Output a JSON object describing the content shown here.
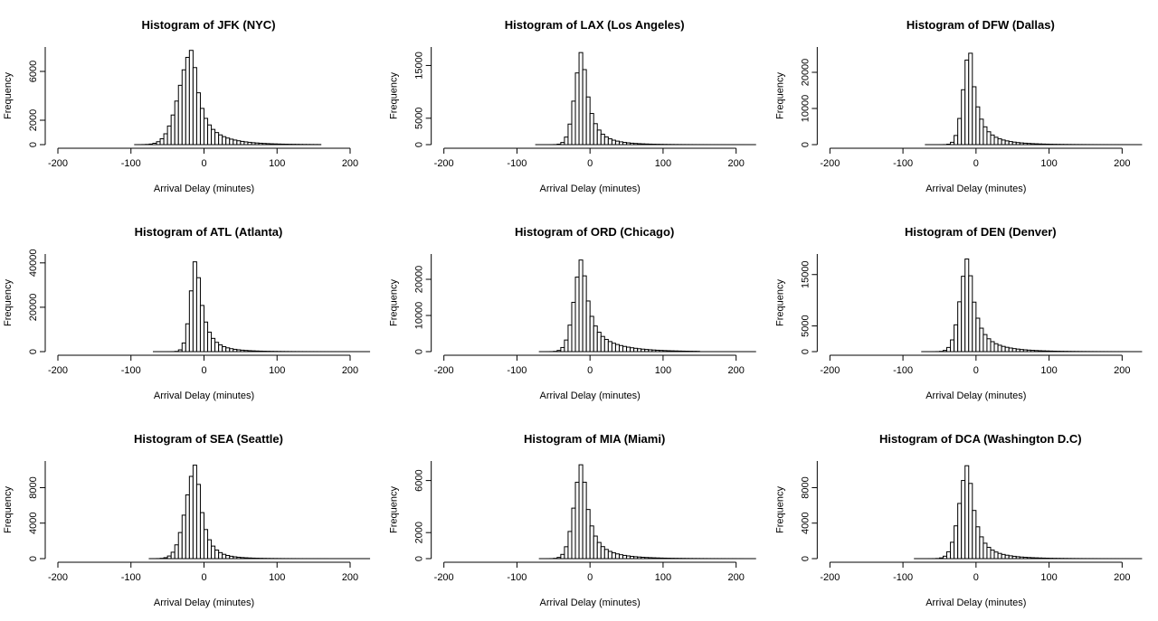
{
  "chart_data": [
    {
      "type": "bar",
      "title": "Histogram of JFK (NYC)",
      "xlabel": "Arrival Delay (minutes)",
      "ylabel": "Frequency",
      "xlim": [
        -200,
        210
      ],
      "ylim": [
        0,
        8000
      ],
      "xticks": [
        -200,
        -100,
        0,
        100,
        200
      ],
      "yticks": [
        0,
        2000,
        6000
      ],
      "bin_width": 5,
      "x_start": -95,
      "peak": 7800,
      "peak_x": -15,
      "left_width": 18,
      "tail_decay": 30,
      "tail_weight": 0.32,
      "tail_end": 160,
      "baseline": false
    },
    {
      "type": "bar",
      "title": "Histogram of LAX (Los Angeles)",
      "xlabel": "Arrival Delay (minutes)",
      "ylabel": "Frequency",
      "xlim": [
        -200,
        210
      ],
      "ylim": [
        0,
        18500
      ],
      "xticks": [
        -200,
        -100,
        0,
        100,
        200
      ],
      "yticks": [
        0,
        5000,
        15000
      ],
      "bin_width": 5,
      "x_start": -75,
      "peak": 18000,
      "peak_x": -10,
      "left_width": 10,
      "tail_decay": 25,
      "tail_weight": 0.22,
      "tail_end": 210,
      "baseline": true
    },
    {
      "type": "bar",
      "title": "Histogram of DFW (Dallas)",
      "xlabel": "Arrival Delay (minutes)",
      "ylabel": "Frequency",
      "xlim": [
        -200,
        210
      ],
      "ylim": [
        0,
        27000
      ],
      "xticks": [
        -200,
        -100,
        0,
        100,
        200
      ],
      "yticks": [
        0,
        10000,
        20000
      ],
      "bin_width": 5,
      "x_start": -70,
      "peak": 26500,
      "peak_x": -8,
      "left_width": 9,
      "tail_decay": 28,
      "tail_weight": 0.22,
      "tail_end": 210,
      "baseline": true
    },
    {
      "type": "bar",
      "title": "Histogram of ATL (Atlanta)",
      "xlabel": "Arrival Delay (minutes)",
      "ylabel": "Frequency",
      "xlim": [
        -200,
        210
      ],
      "ylim": [
        0,
        44000
      ],
      "xticks": [
        -200,
        -100,
        0,
        100,
        200
      ],
      "yticks": [
        0,
        20000,
        40000
      ],
      "bin_width": 5,
      "x_start": -70,
      "peak": 42500,
      "peak_x": -10,
      "left_width": 8,
      "tail_decay": 25,
      "tail_weight": 0.18,
      "tail_end": 210,
      "baseline": true
    },
    {
      "type": "bar",
      "title": "Histogram of ORD (Chicago)",
      "xlabel": "Arrival Delay (minutes)",
      "ylabel": "Frequency",
      "xlim": [
        -200,
        210
      ],
      "ylim": [
        0,
        27000
      ],
      "xticks": [
        -200,
        -100,
        0,
        100,
        200
      ],
      "yticks": [
        0,
        10000,
        20000
      ],
      "bin_width": 5,
      "x_start": -70,
      "peak": 26000,
      "peak_x": -10,
      "left_width": 11,
      "tail_decay": 35,
      "tail_weight": 0.28,
      "tail_end": 150,
      "baseline": true
    },
    {
      "type": "bar",
      "title": "Histogram of DEN (Denver)",
      "xlabel": "Arrival Delay (minutes)",
      "ylabel": "Frequency",
      "xlim": [
        -200,
        210
      ],
      "ylim": [
        0,
        19000
      ],
      "xticks": [
        -200,
        -100,
        0,
        100,
        200
      ],
      "yticks": [
        0,
        5000,
        15000
      ],
      "bin_width": 5,
      "x_start": -75,
      "peak": 18500,
      "peak_x": -10,
      "left_width": 11,
      "tail_decay": 30,
      "tail_weight": 0.25,
      "tail_end": 210,
      "baseline": true
    },
    {
      "type": "bar",
      "title": "Histogram of SEA (Seattle)",
      "xlabel": "Arrival Delay (minutes)",
      "ylabel": "Frequency",
      "xlim": [
        -200,
        210
      ],
      "ylim": [
        0,
        11000
      ],
      "xticks": [
        -200,
        -100,
        0,
        100,
        200
      ],
      "yticks": [
        0,
        4000,
        8000
      ],
      "bin_width": 5,
      "x_start": -75,
      "peak": 10700,
      "peak_x": -10,
      "left_width": 14,
      "tail_decay": 22,
      "tail_weight": 0.18,
      "tail_end": 210,
      "baseline": true
    },
    {
      "type": "bar",
      "title": "Histogram of MIA (Miami)",
      "xlabel": "Arrival Delay (minutes)",
      "ylabel": "Frequency",
      "xlim": [
        -200,
        210
      ],
      "ylim": [
        0,
        7500
      ],
      "xticks": [
        -200,
        -100,
        0,
        100,
        200
      ],
      "yticks": [
        0,
        2000,
        6000
      ],
      "bin_width": 5,
      "x_start": -70,
      "peak": 7400,
      "peak_x": -10,
      "left_width": 11,
      "tail_decay": 30,
      "tail_weight": 0.22,
      "tail_end": 210,
      "baseline": true
    },
    {
      "type": "bar",
      "title": "Histogram of DCA (Washington D.C)",
      "xlabel": "Arrival Delay (minutes)",
      "ylabel": "Frequency",
      "xlim": [
        -200,
        210
      ],
      "ylim": [
        0,
        11000
      ],
      "xticks": [
        -200,
        -100,
        0,
        100,
        200
      ],
      "yticks": [
        0,
        4000,
        8000
      ],
      "bin_width": 5,
      "x_start": -85,
      "peak": 10700,
      "peak_x": -10,
      "left_width": 12,
      "tail_decay": 28,
      "tail_weight": 0.22,
      "tail_end": 210,
      "baseline": true
    }
  ]
}
